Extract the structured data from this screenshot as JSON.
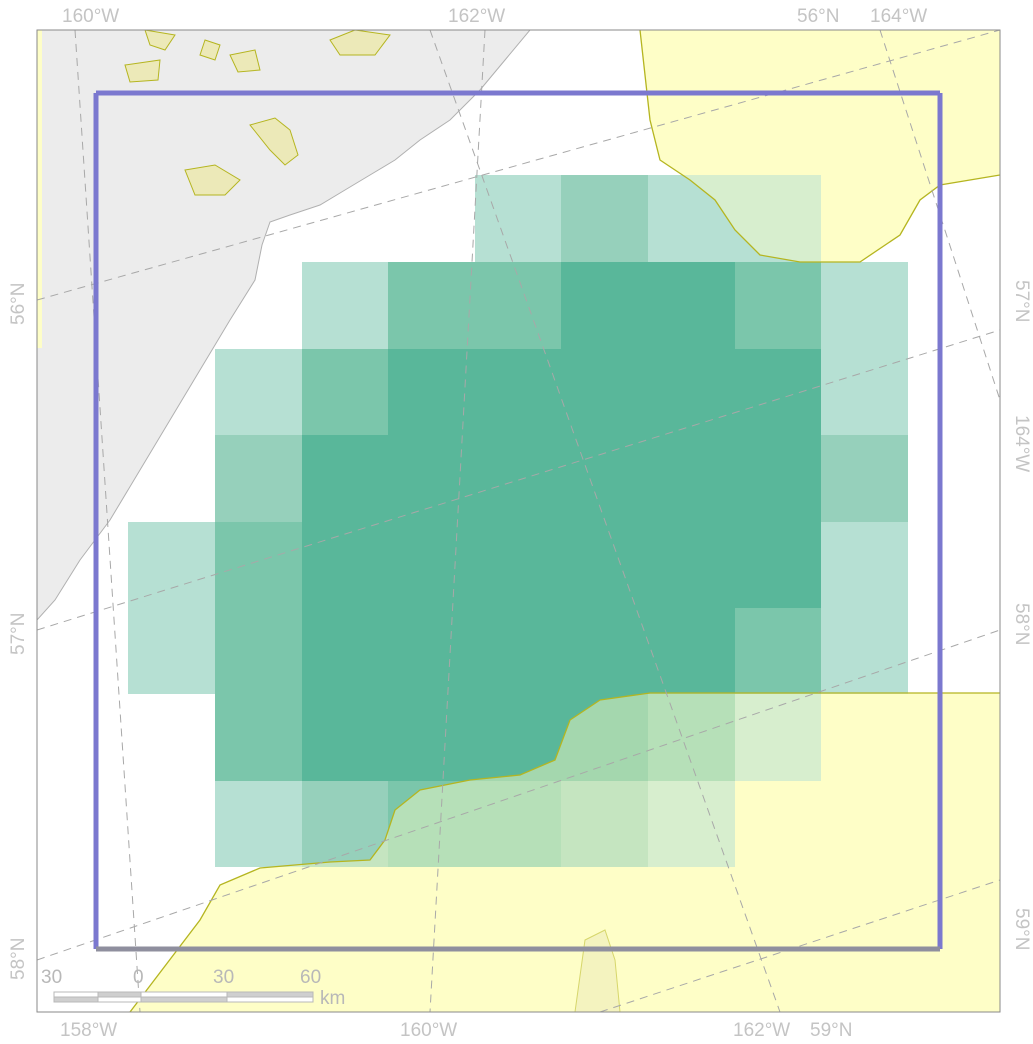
{
  "map": {
    "colors": {
      "land": "#ececec",
      "land_edge": "#b0b0b0",
      "shade": "#fefec7",
      "shade_edge": "#b5b520",
      "island": "#ece9b8",
      "grid_line": "#a8a8a8",
      "box": "#7b78cf",
      "box_bottom": "#8f8f9e",
      "cell_low": "#b6e0d3",
      "cell_mid": "#96d0bb",
      "cell_high": "#7bc6ab",
      "cell_max": "#59b79a"
    },
    "labels": {
      "top_lon_1": "160°W",
      "top_lon_2": "162°W",
      "top_lat": "56°N",
      "top_lon_3": "164°W",
      "bottom_lon_1": "158°W",
      "bottom_lon_2": "160°W",
      "bottom_lon_3": "162°W",
      "bottom_lat": "59°N",
      "left_lat_1": "56°N",
      "left_lat_2": "57°N",
      "left_lat_3": "58°N",
      "right_lat_1": "57°N",
      "right_lon": "164°W",
      "right_lat_2": "58°N",
      "right_lat_3": "59°N"
    },
    "scale_bar": {
      "ticks": [
        "30",
        "0",
        "30",
        "60"
      ],
      "unit": "km"
    }
  }
}
